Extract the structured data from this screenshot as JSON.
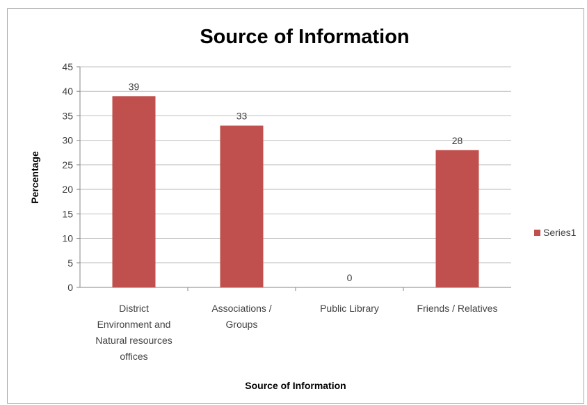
{
  "chart_data": {
    "type": "bar",
    "title": "Source of Information",
    "xlabel": "Source of Information",
    "ylabel": "Percentage",
    "categories": [
      [
        "District",
        "Environment and",
        "Natural resources",
        "offices"
      ],
      [
        "Associations /",
        "Groups"
      ],
      [
        "Public Library"
      ],
      [
        "Friends / Relatives"
      ]
    ],
    "series": [
      {
        "name": "Series1",
        "values": [
          39,
          33,
          0,
          28
        ],
        "color": "#c0504d"
      }
    ],
    "ylim": [
      0,
      45
    ],
    "yticks": [
      0,
      5,
      10,
      15,
      20,
      25,
      30,
      35,
      40,
      45
    ],
    "grid": true,
    "legend_position": "right",
    "data_labels": true
  }
}
